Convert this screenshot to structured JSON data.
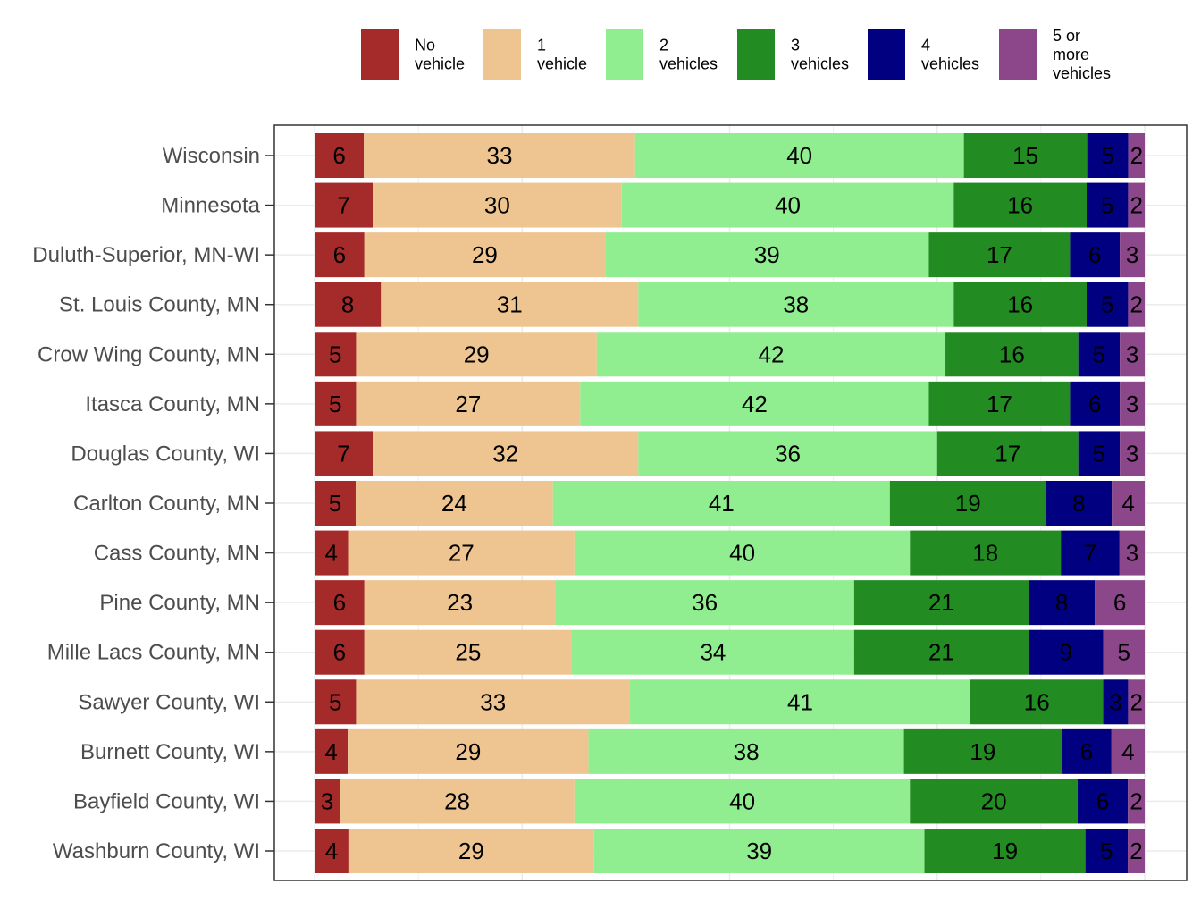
{
  "chart_data": {
    "type": "bar",
    "orientation": "horizontal",
    "stacked": true,
    "title": "",
    "xlabel": "",
    "ylabel": "",
    "xlim": [
      0,
      100
    ],
    "grid": true,
    "legend_position": "top",
    "categories": [
      "Wisconsin",
      "Minnesota",
      "Duluth-Superior, MN-WI",
      "St. Louis County, MN",
      "Crow Wing County, MN",
      "Itasca County, MN",
      "Douglas County, WI",
      "Carlton County, MN",
      "Cass County, MN",
      "Pine County, MN",
      "Mille Lacs County, MN",
      "Sawyer County, WI",
      "Burnett County, WI",
      "Bayfield County, WI",
      "Washburn County, WI"
    ],
    "series": [
      {
        "name": "No\nvehicle",
        "color": "#A52A2A",
        "values": [
          6,
          7,
          6,
          8,
          5,
          5,
          7,
          5,
          4,
          6,
          6,
          5,
          4,
          3,
          4
        ]
      },
      {
        "name": "1\nvehicle",
        "color": "#EEC591",
        "values": [
          33,
          30,
          29,
          31,
          29,
          27,
          32,
          24,
          27,
          23,
          25,
          33,
          29,
          28,
          29
        ]
      },
      {
        "name": "2\nvehicles",
        "color": "#90EE90",
        "values": [
          40,
          40,
          39,
          38,
          42,
          42,
          36,
          41,
          40,
          36,
          34,
          41,
          38,
          40,
          39
        ]
      },
      {
        "name": "3\nvehicles",
        "color": "#228B22",
        "values": [
          15,
          16,
          17,
          16,
          16,
          17,
          17,
          19,
          18,
          21,
          21,
          16,
          19,
          20,
          19
        ]
      },
      {
        "name": "4\nvehicles",
        "color": "#000080",
        "values": [
          5,
          5,
          6,
          5,
          5,
          6,
          5,
          8,
          7,
          8,
          9,
          3,
          6,
          6,
          5
        ]
      },
      {
        "name": "5 or\nmore\nvehicles",
        "color": "#8B4789",
        "values": [
          2,
          2,
          3,
          2,
          3,
          3,
          3,
          4,
          3,
          6,
          5,
          2,
          4,
          2,
          2
        ]
      }
    ]
  }
}
